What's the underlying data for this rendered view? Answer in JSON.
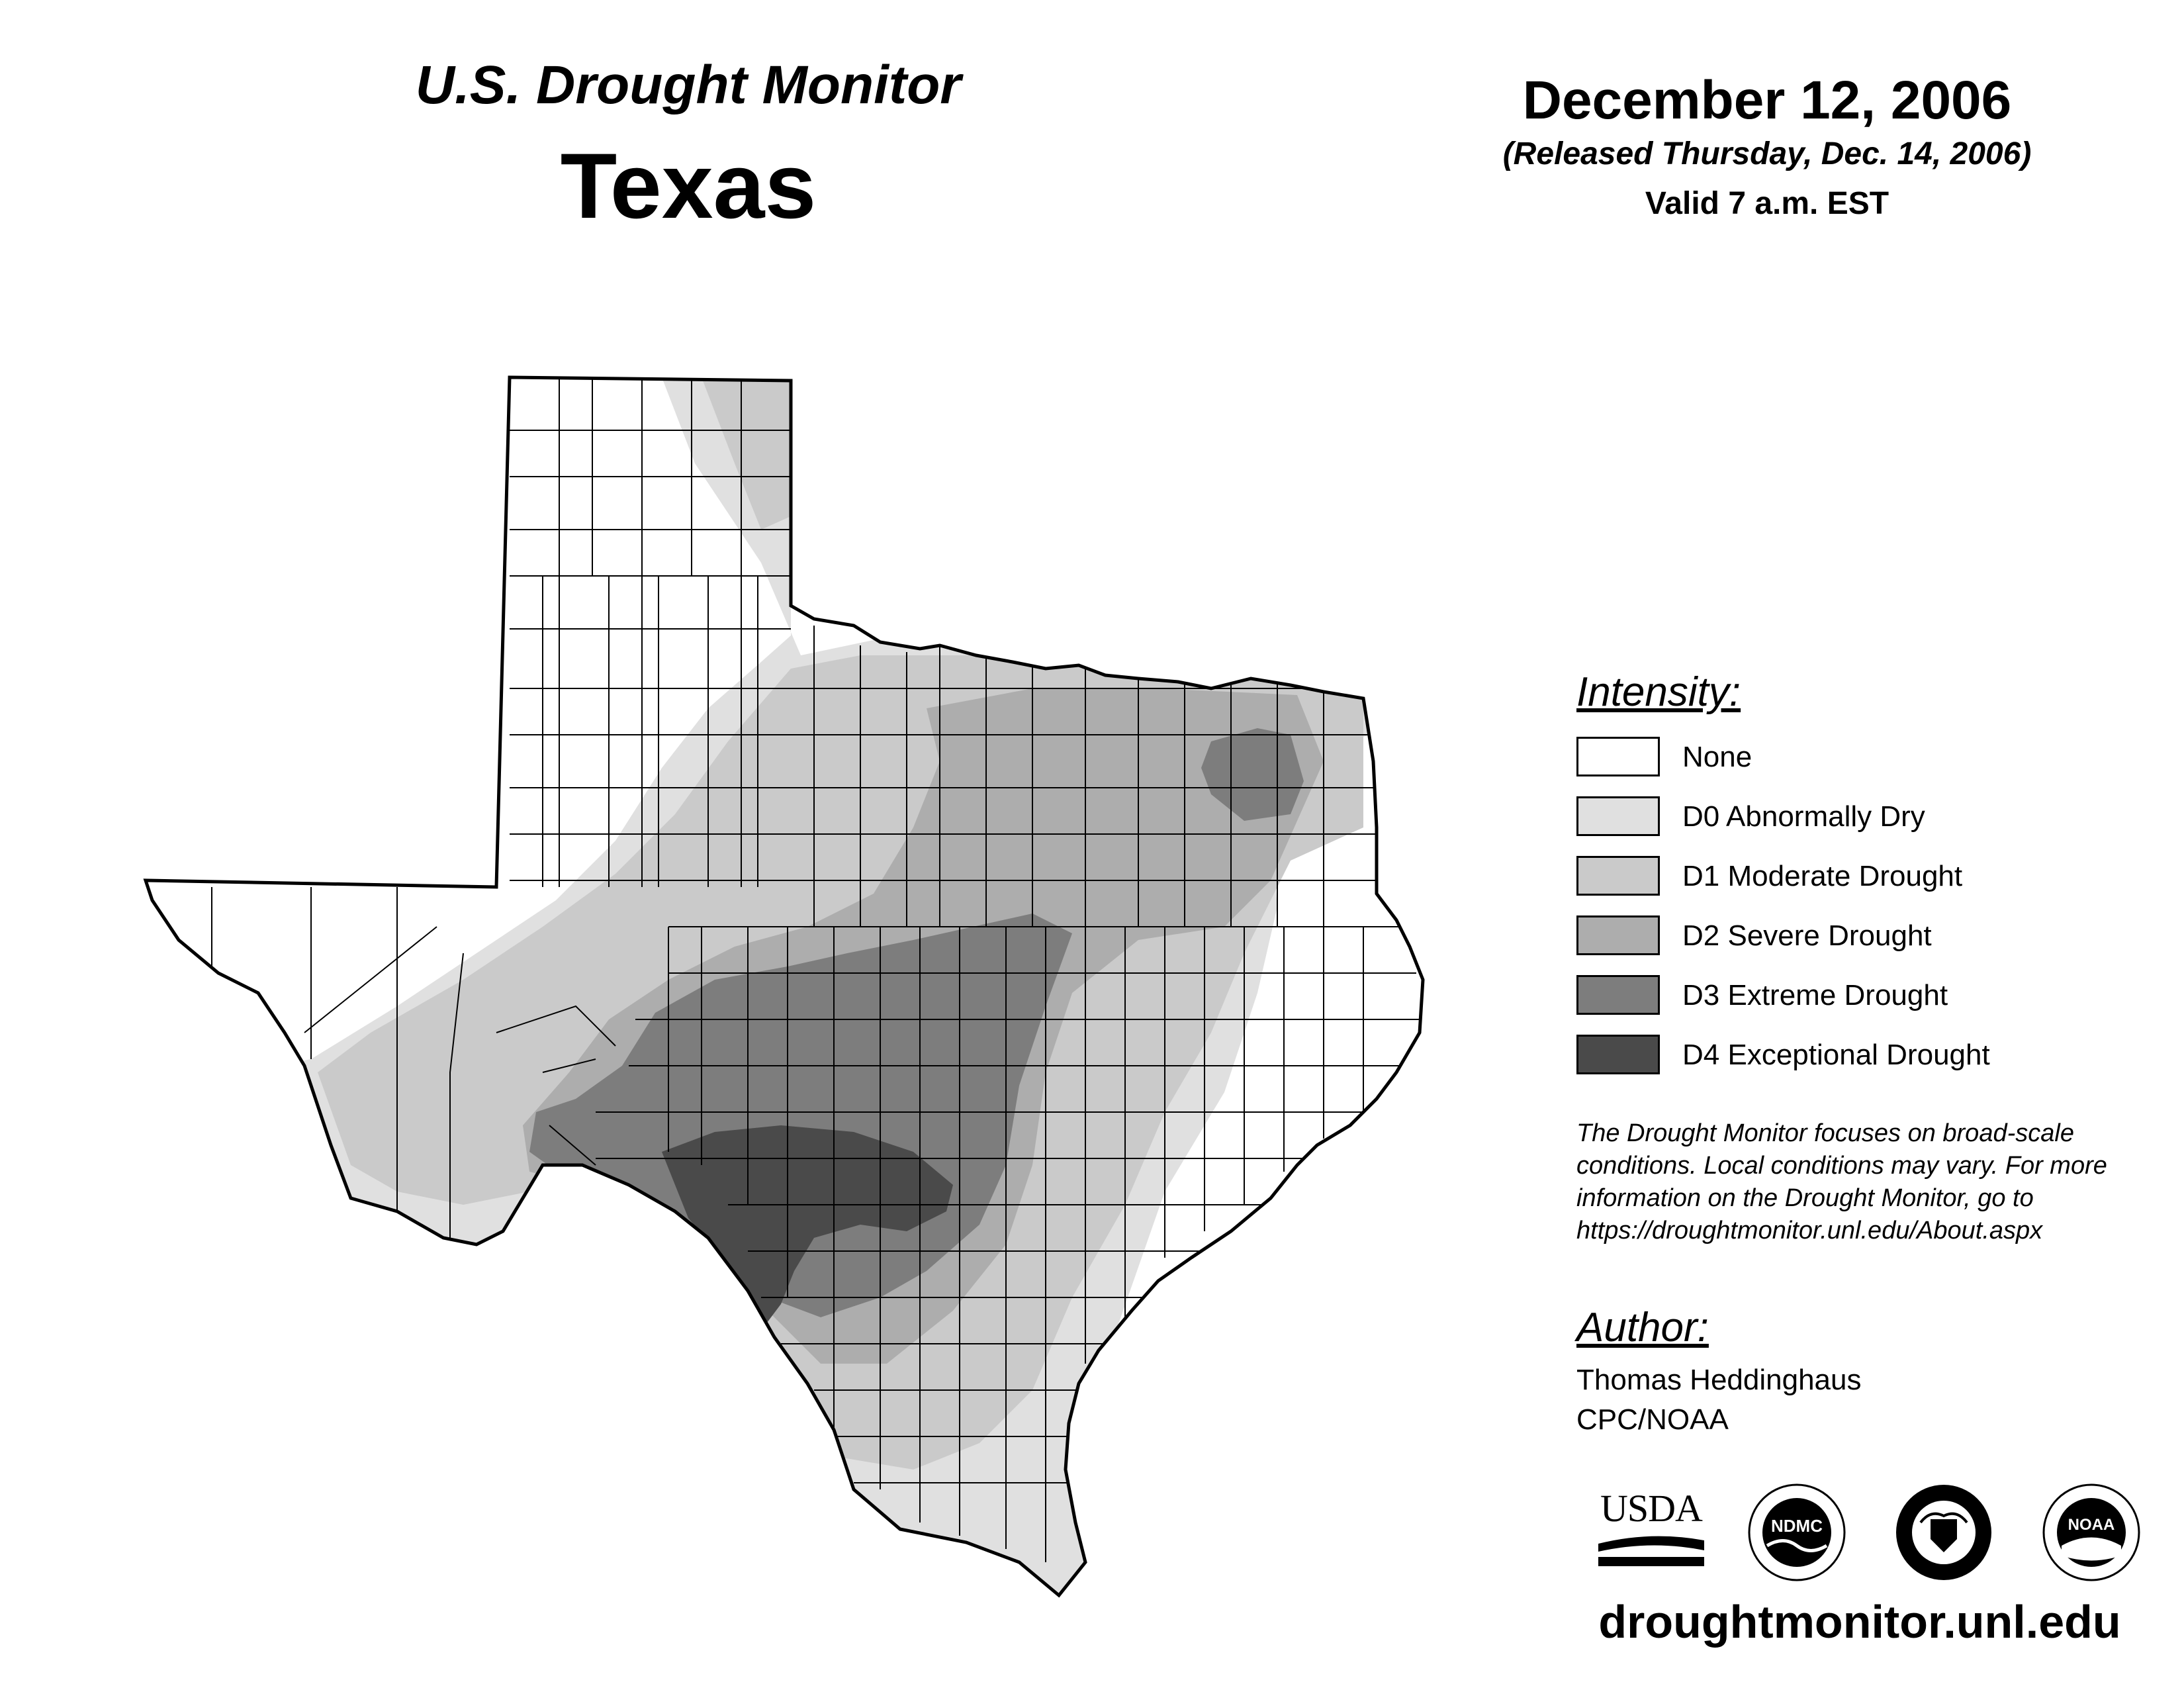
{
  "header": {
    "product": "U.S. Drought Monitor",
    "region": "Texas",
    "date": "December 12, 2006",
    "release": "(Released Thursday, Dec. 14, 2006)",
    "valid": "Valid 7 a.m. EST"
  },
  "legend": {
    "heading": "Intensity:",
    "items": [
      {
        "label": "None",
        "color": "#ffffff"
      },
      {
        "label": "D0 Abnormally Dry",
        "color": "#e0e0e0"
      },
      {
        "label": "D1 Moderate Drought",
        "color": "#cacaca"
      },
      {
        "label": "D2 Severe Drought",
        "color": "#adadad"
      },
      {
        "label": "D3 Extreme Drought",
        "color": "#7d7d7d"
      },
      {
        "label": "D4 Exceptional Drought",
        "color": "#4a4a4a"
      }
    ]
  },
  "note": "The Drought Monitor focuses on broad-scale conditions. Local conditions may vary. For more information on the Drought Monitor, go to https://droughtmonitor.unl.edu/About.aspx",
  "author": {
    "heading": "Author:",
    "name": "Thomas Heddinghaus",
    "org": "CPC/NOAA"
  },
  "logos": {
    "usda": "USDA",
    "ndmc": "NDMC",
    "noaa": "NOAA"
  },
  "footer": {
    "url": "droughtmonitor.unl.edu"
  }
}
